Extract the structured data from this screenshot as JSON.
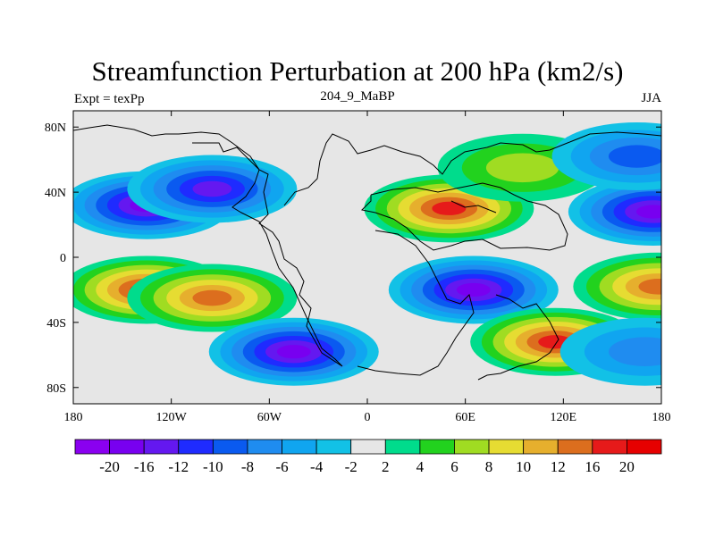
{
  "title": "Streamfunction Perturbation at 200 hPa (km2/s)",
  "subtitle_left": "Expt = texPp",
  "subtitle_center": "204_9_MaBP",
  "subtitle_right": "JJA",
  "map": {
    "lon_range": [
      -180,
      180
    ],
    "lat_range": [
      -90,
      90
    ],
    "lat_ticks": [
      {
        "value": 80,
        "label": "80N"
      },
      {
        "value": 40,
        "label": "40N"
      },
      {
        "value": 0,
        "label": "0"
      },
      {
        "value": -40,
        "label": "40S"
      },
      {
        "value": -80,
        "label": "80S"
      }
    ],
    "lon_ticks": [
      {
        "value": -180,
        "label": "180"
      },
      {
        "value": -120,
        "label": "120W"
      },
      {
        "value": -60,
        "label": "60W"
      },
      {
        "value": 0,
        "label": "0"
      },
      {
        "value": 60,
        "label": "60E"
      },
      {
        "value": 120,
        "label": "120E"
      },
      {
        "value": 180,
        "label": "180"
      }
    ],
    "background_color": "#e6e6e6",
    "anomalies": [
      {
        "name": "n-pacific-low",
        "lon": -135,
        "lat": 32,
        "value": -20
      },
      {
        "name": "n-atlantic-low",
        "lon": -95,
        "lat": 42,
        "value": -14
      },
      {
        "name": "asia-high",
        "lon": 50,
        "lat": 30,
        "value": 18
      },
      {
        "name": "e-asia-high",
        "lon": 95,
        "lat": 55,
        "value": 8
      },
      {
        "name": "se-pacific-high",
        "lon": -135,
        "lat": -20,
        "value": 20
      },
      {
        "name": "s-atlantic-high",
        "lon": -95,
        "lat": -25,
        "value": 16
      },
      {
        "name": "indian-ocean-low",
        "lon": 65,
        "lat": -20,
        "value": -20
      },
      {
        "name": "s-ocean-high",
        "lon": 115,
        "lat": -52,
        "value": 18
      },
      {
        "name": "s-america-low",
        "lon": -45,
        "lat": -58,
        "value": -20
      },
      {
        "name": "w-pacific-low",
        "lon": 175,
        "lat": 28,
        "value": -18
      },
      {
        "name": "e-pacific-n-low",
        "lon": 165,
        "lat": 62,
        "value": -10
      },
      {
        "name": "w-pacific-s-high",
        "lon": 178,
        "lat": -18,
        "value": 16
      },
      {
        "name": "far-s-pacific-low",
        "lon": 170,
        "lat": -58,
        "value": -8
      }
    ]
  },
  "colorbar": {
    "colors": [
      "#8a00f0",
      "#7800f0",
      "#6418f0",
      "#1f2bff",
      "#0a5af0",
      "#1f8cf0",
      "#10a5f0",
      "#12c1e6",
      "#e6e6e6",
      "#00dc8c",
      "#22d21e",
      "#a0dc22",
      "#e6dc32",
      "#e6af2d",
      "#dc6e1e",
      "#e61a1a",
      "#e60000"
    ],
    "labels": [
      "-20",
      "-16",
      "-12",
      "-10",
      "-8",
      "-6",
      "-4",
      "-2",
      "2",
      "4",
      "6",
      "8",
      "10",
      "12",
      "16",
      "20"
    ]
  }
}
